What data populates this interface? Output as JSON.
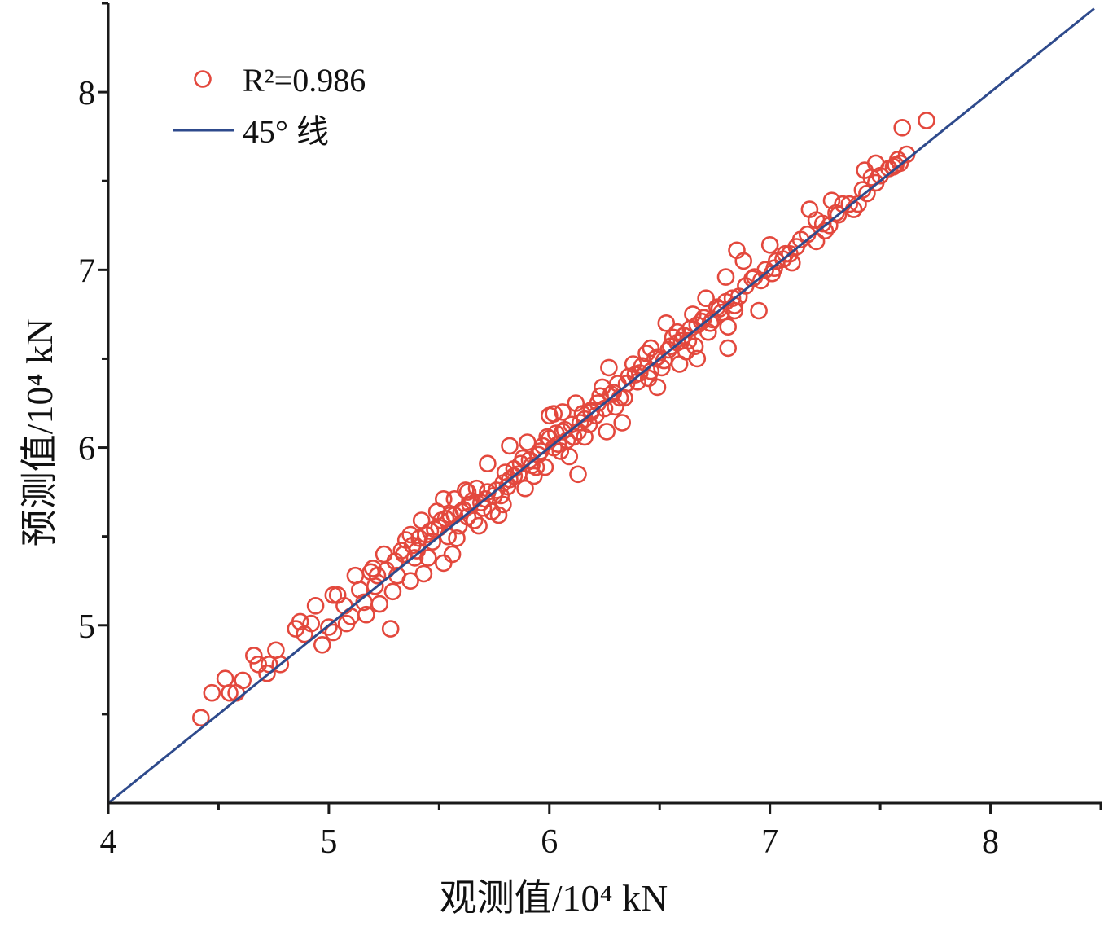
{
  "chart_data": {
    "type": "scatter",
    "xlabel": "观测值/10⁴ kN",
    "ylabel": "预测值/10⁴ kN",
    "xlim": [
      4,
      8.5
    ],
    "ylim": [
      4,
      8.5
    ],
    "x_ticks": [
      4,
      5,
      6,
      7,
      8
    ],
    "y_ticks": [
      5,
      6,
      7,
      8
    ],
    "x_minor_ticks": [
      4.5,
      5.5,
      6.5,
      7.5,
      8.5
    ],
    "y_minor_ticks": [
      4.5,
      5.5,
      6.5,
      7.5,
      8.5
    ],
    "grid": false,
    "legend": {
      "position": "top-left"
    },
    "series": [
      {
        "name": "R²=0.986",
        "type": "scatter",
        "marker": "open-circle",
        "color": "#e3483d",
        "points": [
          [
            4.42,
            4.48
          ],
          [
            4.47,
            4.62
          ],
          [
            4.53,
            4.7
          ],
          [
            4.55,
            4.62
          ],
          [
            4.58,
            4.62
          ],
          [
            4.61,
            4.69
          ],
          [
            4.66,
            4.83
          ],
          [
            4.68,
            4.78
          ],
          [
            4.72,
            4.73
          ],
          [
            4.73,
            4.78
          ],
          [
            4.76,
            4.86
          ],
          [
            4.78,
            4.78
          ],
          [
            4.85,
            4.98
          ],
          [
            4.87,
            5.02
          ],
          [
            4.89,
            4.95
          ],
          [
            4.92,
            5.01
          ],
          [
            4.94,
            5.11
          ],
          [
            4.97,
            4.89
          ],
          [
            5.0,
            4.99
          ],
          [
            5.02,
            4.96
          ],
          [
            5.02,
            5.17
          ],
          [
            5.04,
            5.17
          ],
          [
            5.07,
            5.11
          ],
          [
            5.08,
            5.01
          ],
          [
            5.12,
            5.28
          ],
          [
            5.14,
            5.2
          ],
          [
            5.17,
            5.06
          ],
          [
            5.19,
            5.3
          ],
          [
            5.2,
            5.32
          ],
          [
            5.22,
            5.28
          ],
          [
            5.23,
            5.12
          ],
          [
            5.25,
            5.4
          ],
          [
            5.26,
            5.31
          ],
          [
            5.28,
            4.98
          ],
          [
            5.29,
            5.19
          ],
          [
            5.3,
            5.36
          ],
          [
            5.33,
            5.42
          ],
          [
            5.35,
            5.48
          ],
          [
            5.37,
            5.25
          ],
          [
            5.37,
            5.51
          ],
          [
            5.39,
            5.38
          ],
          [
            5.41,
            5.49
          ],
          [
            5.42,
            5.59
          ],
          [
            5.43,
            5.29
          ],
          [
            5.45,
            5.38
          ],
          [
            5.47,
            5.47
          ],
          [
            5.48,
            5.54
          ],
          [
            5.49,
            5.64
          ],
          [
            5.51,
            5.59
          ],
          [
            5.52,
            5.35
          ],
          [
            5.52,
            5.71
          ],
          [
            5.54,
            5.5
          ],
          [
            5.55,
            5.62
          ],
          [
            5.56,
            5.4
          ],
          [
            5.57,
            5.71
          ],
          [
            5.58,
            5.49
          ],
          [
            5.59,
            5.56
          ],
          [
            5.61,
            5.65
          ],
          [
            5.62,
            5.76
          ],
          [
            5.63,
            5.75
          ],
          [
            5.64,
            5.68
          ],
          [
            5.66,
            5.59
          ],
          [
            5.67,
            5.77
          ],
          [
            5.68,
            5.56
          ],
          [
            5.7,
            5.66
          ],
          [
            5.71,
            5.71
          ],
          [
            5.72,
            5.91
          ],
          [
            5.74,
            5.64
          ],
          [
            5.76,
            5.76
          ],
          [
            5.77,
            5.62
          ],
          [
            5.78,
            5.73
          ],
          [
            5.79,
            5.68
          ],
          [
            5.8,
            5.86
          ],
          [
            5.82,
            6.01
          ],
          [
            5.82,
            5.82
          ],
          [
            5.84,
            5.88
          ],
          [
            5.86,
            5.85
          ],
          [
            5.88,
            5.94
          ],
          [
            5.89,
            5.77
          ],
          [
            5.9,
            6.03
          ],
          [
            5.92,
            5.9
          ],
          [
            5.93,
            5.84
          ],
          [
            5.95,
            5.96
          ],
          [
            5.97,
            6.01
          ],
          [
            5.98,
            5.89
          ],
          [
            5.99,
            6.06
          ],
          [
            6.0,
            6.18
          ],
          [
            6.02,
            6.0
          ],
          [
            6.02,
            6.19
          ],
          [
            6.03,
            6.08
          ],
          [
            6.05,
            5.98
          ],
          [
            6.06,
            6.2
          ],
          [
            6.07,
            6.1
          ],
          [
            6.08,
            6.04
          ],
          [
            6.09,
            5.95
          ],
          [
            6.11,
            6.06
          ],
          [
            6.12,
            6.25
          ],
          [
            6.13,
            5.85
          ],
          [
            6.14,
            6.14
          ],
          [
            6.15,
            6.19
          ],
          [
            6.16,
            6.06
          ],
          [
            6.18,
            6.13
          ],
          [
            6.19,
            6.21
          ],
          [
            6.21,
            6.18
          ],
          [
            6.23,
            6.29
          ],
          [
            6.24,
            6.34
          ],
          [
            6.26,
            6.09
          ],
          [
            6.27,
            6.45
          ],
          [
            6.28,
            6.3
          ],
          [
            6.3,
            6.23
          ],
          [
            6.31,
            6.36
          ],
          [
            6.33,
            6.14
          ],
          [
            6.34,
            6.28
          ],
          [
            6.36,
            6.4
          ],
          [
            6.38,
            6.47
          ],
          [
            6.4,
            6.37
          ],
          [
            6.41,
            6.42
          ],
          [
            6.44,
            6.53
          ],
          [
            6.45,
            6.39
          ],
          [
            6.46,
            6.56
          ],
          [
            6.48,
            6.5
          ],
          [
            6.49,
            6.34
          ],
          [
            6.51,
            6.45
          ],
          [
            6.53,
            6.7
          ],
          [
            6.54,
            6.55
          ],
          [
            6.56,
            6.62
          ],
          [
            6.58,
            6.65
          ],
          [
            6.59,
            6.47
          ],
          [
            6.6,
            6.6
          ],
          [
            6.62,
            6.54
          ],
          [
            6.64,
            6.67
          ],
          [
            6.65,
            6.75
          ],
          [
            6.66,
            6.57
          ],
          [
            6.67,
            6.5
          ],
          [
            6.69,
            6.71
          ],
          [
            6.71,
            6.84
          ],
          [
            6.72,
            6.65
          ],
          [
            6.74,
            6.72
          ],
          [
            6.76,
            6.79
          ],
          [
            6.78,
            6.76
          ],
          [
            6.8,
            6.96
          ],
          [
            6.81,
            6.56
          ],
          [
            6.81,
            6.68
          ],
          [
            6.83,
            6.84
          ],
          [
            6.84,
            6.77
          ],
          [
            6.85,
            7.11
          ],
          [
            6.86,
            6.85
          ],
          [
            6.88,
            7.05
          ],
          [
            6.93,
            6.96
          ],
          [
            6.95,
            6.77
          ],
          [
            6.96,
            6.94
          ],
          [
            7.0,
            7.14
          ],
          [
            7.01,
            6.98
          ],
          [
            7.03,
            7.05
          ],
          [
            7.06,
            7.06
          ],
          [
            7.09,
            7.09
          ],
          [
            7.1,
            7.04
          ],
          [
            7.14,
            7.17
          ],
          [
            7.18,
            7.34
          ],
          [
            7.21,
            7.28
          ],
          [
            7.21,
            7.16
          ],
          [
            7.25,
            7.22
          ],
          [
            7.28,
            7.39
          ],
          [
            7.3,
            7.32
          ],
          [
            7.33,
            7.37
          ],
          [
            7.38,
            7.34
          ],
          [
            7.4,
            7.37
          ],
          [
            7.43,
            7.56
          ],
          [
            7.44,
            7.43
          ],
          [
            7.46,
            7.52
          ],
          [
            7.48,
            7.6
          ],
          [
            7.48,
            7.49
          ],
          [
            7.54,
            7.57
          ],
          [
            7.57,
            7.59
          ],
          [
            7.58,
            7.62
          ],
          [
            7.6,
            7.8
          ],
          [
            7.62,
            7.65
          ],
          [
            7.71,
            7.84
          ],
          [
            5.1,
            5.05
          ],
          [
            5.16,
            5.13
          ],
          [
            5.21,
            5.22
          ],
          [
            5.31,
            5.28
          ],
          [
            5.34,
            5.4
          ],
          [
            5.38,
            5.45
          ],
          [
            5.4,
            5.42
          ],
          [
            5.44,
            5.51
          ],
          [
            5.46,
            5.53
          ],
          [
            5.5,
            5.55
          ],
          [
            5.53,
            5.6
          ],
          [
            5.57,
            5.62
          ],
          [
            5.6,
            5.64
          ],
          [
            5.63,
            5.61
          ],
          [
            5.65,
            5.7
          ],
          [
            5.69,
            5.69
          ],
          [
            5.72,
            5.75
          ],
          [
            5.75,
            5.73
          ],
          [
            5.79,
            5.8
          ],
          [
            5.81,
            5.78
          ],
          [
            5.84,
            5.84
          ],
          [
            5.87,
            5.91
          ],
          [
            5.91,
            5.93
          ],
          [
            5.94,
            5.89
          ],
          [
            5.96,
            5.98
          ],
          [
            6.0,
            6.05
          ],
          [
            6.04,
            6.02
          ],
          [
            6.06,
            6.09
          ],
          [
            6.1,
            6.13
          ],
          [
            6.13,
            6.09
          ],
          [
            6.16,
            6.16
          ],
          [
            6.19,
            6.2
          ],
          [
            6.22,
            6.25
          ],
          [
            6.25,
            6.22
          ],
          [
            6.29,
            6.31
          ],
          [
            6.32,
            6.28
          ],
          [
            6.35,
            6.36
          ],
          [
            6.39,
            6.41
          ],
          [
            6.42,
            6.46
          ],
          [
            6.46,
            6.43
          ],
          [
            6.49,
            6.51
          ],
          [
            6.52,
            6.49
          ],
          [
            6.55,
            6.57
          ],
          [
            6.58,
            6.59
          ],
          [
            6.61,
            6.63
          ],
          [
            6.63,
            6.6
          ],
          [
            6.67,
            6.69
          ],
          [
            6.7,
            6.73
          ],
          [
            6.73,
            6.7
          ],
          [
            6.77,
            6.78
          ],
          [
            6.8,
            6.82
          ],
          [
            6.84,
            6.8
          ],
          [
            6.89,
            6.91
          ],
          [
            6.92,
            6.95
          ],
          [
            6.98,
            7.0
          ],
          [
            7.02,
            7.01
          ],
          [
            7.07,
            7.09
          ],
          [
            7.12,
            7.13
          ],
          [
            7.17,
            7.2
          ],
          [
            7.24,
            7.26
          ],
          [
            7.27,
            7.25
          ],
          [
            7.31,
            7.31
          ],
          [
            7.36,
            7.37
          ],
          [
            7.42,
            7.45
          ],
          [
            7.5,
            7.53
          ],
          [
            7.56,
            7.58
          ],
          [
            7.59,
            7.6
          ]
        ]
      },
      {
        "name": "45° 线",
        "type": "line",
        "color": "#2e4a8c",
        "points": [
          [
            4,
            4
          ],
          [
            8.47,
            8.47
          ]
        ]
      }
    ]
  }
}
